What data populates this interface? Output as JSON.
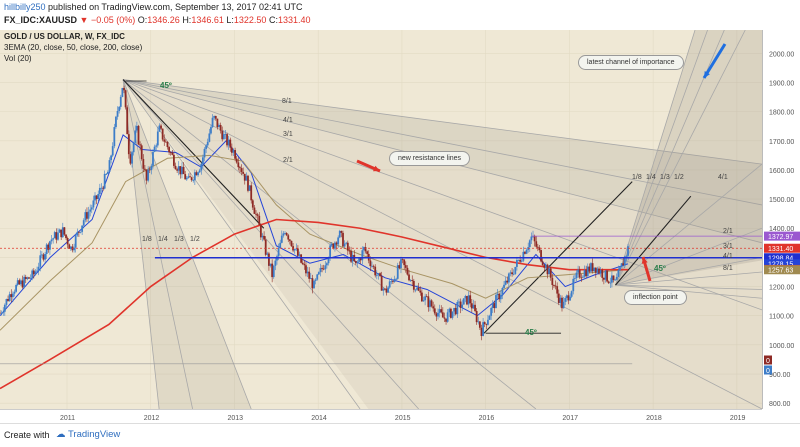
{
  "header": {
    "user": "hillbilly250",
    "published": "published on TradingView.com, September 13, 2017 02:41 UTC",
    "symbol": "FX_IDC:XAUUSD",
    "ohlc": "▼ −0.05 (0%)",
    "o_label": "O:",
    "o_value": "1346.26",
    "h_label": "H:",
    "h_value": "1346.61",
    "l_label": "L:",
    "l_value": "1322.50",
    "c_label": "C:",
    "c_value": "1331.40",
    "last": "1331.40"
  },
  "legend": {
    "title": "GOLD / US DOLLAR, W, FX_IDC",
    "ema": "3EMA (20, close, 50, close, 200, close)",
    "vol": "Vol (20)"
  },
  "footer": {
    "create_with": "Create with",
    "brand": "TradingView"
  },
  "annotations": {
    "channel": "latest channel of importance",
    "resistance": "new resistance lines",
    "inflection": "inflection point",
    "deg45_top": "45º",
    "deg45_bottom": "45º",
    "deg45_right": "45º",
    "fan_top": [
      "8/1",
      "4/1",
      "3/1",
      "2/1"
    ],
    "fan_bottom": [
      "1/8",
      "1/4",
      "1/3",
      "1/2"
    ],
    "fan_right_top": [
      "1/8",
      "1/4",
      "1/3",
      "1/2",
      "4/1"
    ],
    "fan_right_side": [
      "2/1",
      "3/1",
      "4/1",
      "8/1"
    ]
  },
  "colors": {
    "bull": "#3d7dc8",
    "bear": "#8e2a25",
    "ema20": "#2444d8",
    "ema50": "#a89464",
    "ema200": "#e0342b",
    "blueLine": "#1f2fd0",
    "bg": "#efe8d5",
    "fan": "#a8a8a8"
  },
  "chart_data": {
    "type": "line",
    "title": "GOLD / US DOLLAR, W, FX_IDC",
    "x_ticks": [
      "2011",
      "2012",
      "2013",
      "2014",
      "2015",
      "2016",
      "2017",
      "2018",
      "2019"
    ],
    "y_ticks": [
      800,
      900,
      1000,
      1100,
      1200,
      1300,
      1400,
      1500,
      1600,
      1700,
      1800,
      1900,
      2000
    ],
    "ylim": [
      780,
      2080
    ],
    "price_labels": [
      {
        "value": "1372.97",
        "color": "#9b59d0",
        "y": 1372.97
      },
      {
        "value": "1331.40",
        "color": "#e0342b",
        "y": 1331.4
      },
      {
        "value": "1298.84",
        "color": "#1f2fd0",
        "y": 1298.84
      },
      {
        "value": "1278.15",
        "color": "#2444d8",
        "y": 1278.15
      },
      {
        "value": "1258.75",
        "color": "#e0342b",
        "y": 1258.75
      },
      {
        "value": "1257.63",
        "color": "#a08a50",
        "y": 1257.63
      }
    ],
    "volume_labels": [
      {
        "value": "0",
        "color": "#8e2a25"
      },
      {
        "value": "0",
        "color": "#3d7dc8"
      }
    ],
    "series": [
      {
        "name": "XAUUSD",
        "points": [
          [
            2010.2,
            1110
          ],
          [
            2010.35,
            1190
          ],
          [
            2010.6,
            1240
          ],
          [
            2010.8,
            1360
          ],
          [
            2010.95,
            1390
          ],
          [
            2011.05,
            1330
          ],
          [
            2011.2,
            1430
          ],
          [
            2011.35,
            1500
          ],
          [
            2011.5,
            1600
          ],
          [
            2011.6,
            1800
          ],
          [
            2011.67,
            1900
          ],
          [
            2011.75,
            1630
          ],
          [
            2011.83,
            1740
          ],
          [
            2011.95,
            1560
          ],
          [
            2012.1,
            1740
          ],
          [
            2012.3,
            1620
          ],
          [
            2012.45,
            1560
          ],
          [
            2012.6,
            1620
          ],
          [
            2012.75,
            1780
          ],
          [
            2012.9,
            1700
          ],
          [
            2013.0,
            1660
          ],
          [
            2013.15,
            1560
          ],
          [
            2013.3,
            1400
          ],
          [
            2013.45,
            1240
          ],
          [
            2013.6,
            1400
          ],
          [
            2013.8,
            1280
          ],
          [
            2013.95,
            1200
          ],
          [
            2014.15,
            1330
          ],
          [
            2014.25,
            1380
          ],
          [
            2014.45,
            1270
          ],
          [
            2014.55,
            1330
          ],
          [
            2014.8,
            1180
          ],
          [
            2015.0,
            1280
          ],
          [
            2015.2,
            1180
          ],
          [
            2015.5,
            1090
          ],
          [
            2015.8,
            1160
          ],
          [
            2015.95,
            1050
          ],
          [
            2016.1,
            1140
          ],
          [
            2016.3,
            1240
          ],
          [
            2016.55,
            1370
          ],
          [
            2016.75,
            1250
          ],
          [
            2016.92,
            1130
          ],
          [
            2017.1,
            1240
          ],
          [
            2017.3,
            1270
          ],
          [
            2017.45,
            1230
          ],
          [
            2017.55,
            1210
          ],
          [
            2017.7,
            1330
          ]
        ]
      },
      {
        "name": "EMA 20",
        "points": [
          [
            2010.2,
            1100
          ],
          [
            2010.8,
            1300
          ],
          [
            2011.3,
            1430
          ],
          [
            2011.67,
            1720
          ],
          [
            2011.9,
            1670
          ],
          [
            2012.3,
            1660
          ],
          [
            2012.6,
            1610
          ],
          [
            2012.9,
            1700
          ],
          [
            2013.2,
            1590
          ],
          [
            2013.5,
            1340
          ],
          [
            2013.9,
            1280
          ],
          [
            2014.3,
            1310
          ],
          [
            2014.8,
            1230
          ],
          [
            2015.3,
            1190
          ],
          [
            2015.9,
            1100
          ],
          [
            2016.2,
            1170
          ],
          [
            2016.6,
            1310
          ],
          [
            2016.95,
            1200
          ],
          [
            2017.3,
            1240
          ],
          [
            2017.7,
            1278
          ]
        ]
      },
      {
        "name": "EMA 50",
        "points": [
          [
            2010.2,
            1050
          ],
          [
            2010.8,
            1220
          ],
          [
            2011.3,
            1350
          ],
          [
            2011.7,
            1560
          ],
          [
            2012.2,
            1640
          ],
          [
            2012.7,
            1650
          ],
          [
            2013.1,
            1630
          ],
          [
            2013.5,
            1480
          ],
          [
            2013.9,
            1380
          ],
          [
            2014.5,
            1310
          ],
          [
            2015.0,
            1260
          ],
          [
            2015.6,
            1210
          ],
          [
            2016.0,
            1160
          ],
          [
            2016.5,
            1230
          ],
          [
            2016.95,
            1240
          ],
          [
            2017.7,
            1258
          ]
        ]
      },
      {
        "name": "EMA 200",
        "points": [
          [
            2010.2,
            850
          ],
          [
            2010.8,
            950
          ],
          [
            2011.5,
            1070
          ],
          [
            2012.0,
            1200
          ],
          [
            2012.5,
            1300
          ],
          [
            2013.0,
            1380
          ],
          [
            2013.5,
            1430
          ],
          [
            2014.0,
            1420
          ],
          [
            2014.5,
            1400
          ],
          [
            2015.0,
            1370
          ],
          [
            2015.5,
            1335
          ],
          [
            2016.0,
            1300
          ],
          [
            2016.5,
            1275
          ],
          [
            2017.0,
            1258
          ],
          [
            2017.7,
            1258
          ]
        ]
      }
    ]
  }
}
